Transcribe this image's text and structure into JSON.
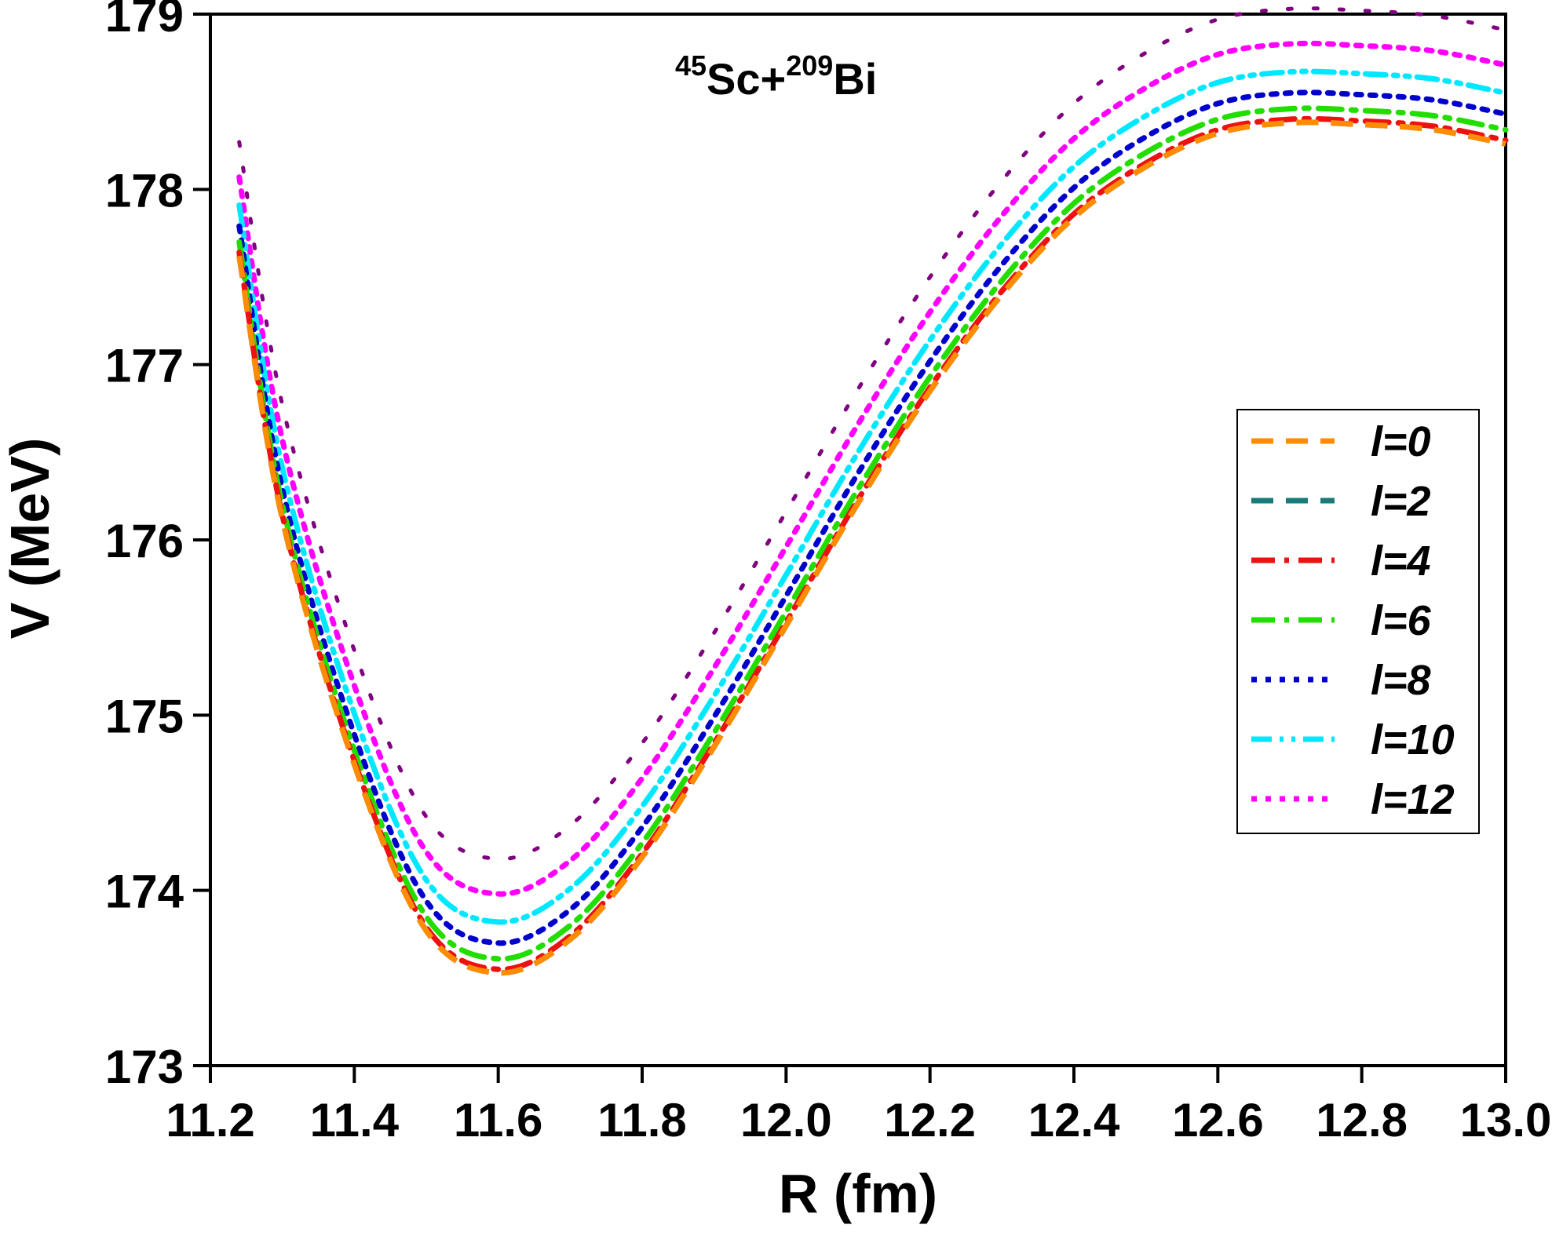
{
  "chart_data": {
    "type": "line",
    "title": "",
    "annotation": {
      "parts": [
        {
          "text": "45",
          "sup": true
        },
        {
          "text": "Sc+",
          "sup": false
        },
        {
          "text": "209",
          "sup": true
        },
        {
          "text": "Bi",
          "sup": false
        }
      ]
    },
    "xlabel": "R (fm)",
    "ylabel": "V (MeV)",
    "xlim": [
      11.2,
      13.0
    ],
    "ylim": [
      173,
      179
    ],
    "xticks": [
      "11.2",
      "11.4",
      "11.6",
      "11.8",
      "12.0",
      "12.2",
      "12.4",
      "12.6",
      "12.8",
      "13.0"
    ],
    "yticks": [
      "173",
      "174",
      "175",
      "176",
      "177",
      "178",
      "179"
    ],
    "grid": false,
    "legend_position": "right-center",
    "x": [
      11.24,
      11.3,
      11.4,
      11.5,
      11.6,
      11.7,
      11.8,
      11.9,
      12.0,
      12.1,
      12.2,
      12.3,
      12.4,
      12.5,
      12.6,
      12.7,
      12.8,
      12.9,
      13.0
    ],
    "series": [
      {
        "name": "l=0",
        "color": "#ff8c00",
        "style": "dash",
        "values": [
          177.62,
          176.12,
          174.72,
          173.77,
          173.53,
          173.72,
          174.19,
          174.82,
          175.51,
          176.21,
          176.85,
          177.4,
          177.84,
          178.13,
          178.32,
          178.38,
          178.37,
          178.34,
          178.26
        ]
      },
      {
        "name": "l=2",
        "color": "#1a7a7a",
        "style": "dash",
        "values": [
          177.62,
          176.12,
          174.72,
          173.77,
          173.53,
          173.72,
          174.19,
          174.82,
          175.51,
          176.21,
          176.85,
          177.4,
          177.84,
          178.13,
          178.32,
          178.38,
          178.37,
          178.34,
          178.26
        ]
      },
      {
        "name": "l=4",
        "color": "#ee1111",
        "style": "dashdot",
        "values": [
          177.64,
          176.14,
          174.74,
          173.79,
          173.55,
          173.74,
          174.21,
          174.84,
          175.53,
          176.23,
          176.87,
          177.42,
          177.86,
          178.15,
          178.34,
          178.4,
          178.39,
          178.36,
          178.28
        ]
      },
      {
        "name": "l=6",
        "color": "#22dd00",
        "style": "dashdot",
        "values": [
          177.7,
          176.2,
          174.8,
          173.85,
          173.61,
          173.8,
          174.27,
          174.9,
          175.59,
          176.29,
          176.93,
          177.48,
          177.92,
          178.21,
          178.4,
          178.46,
          178.45,
          178.42,
          178.34
        ]
      },
      {
        "name": "l=8",
        "color": "#0000cc",
        "style": "dot",
        "values": [
          177.79,
          176.29,
          174.89,
          173.94,
          173.7,
          173.89,
          174.36,
          174.99,
          175.68,
          176.38,
          177.02,
          177.57,
          178.01,
          178.3,
          178.49,
          178.55,
          178.54,
          178.51,
          178.43
        ]
      },
      {
        "name": "l=10",
        "color": "#00e8ff",
        "style": "dashdotdot",
        "values": [
          177.91,
          176.41,
          175.01,
          174.06,
          173.82,
          174.01,
          174.48,
          175.11,
          175.8,
          176.5,
          177.14,
          177.69,
          178.13,
          178.42,
          178.61,
          178.67,
          178.66,
          178.63,
          178.55
        ]
      },
      {
        "name": "l=12",
        "color": "#ff00ff",
        "style": "dot",
        "values": [
          178.07,
          176.57,
          175.17,
          174.22,
          173.98,
          174.17,
          174.64,
          175.27,
          175.96,
          176.66,
          177.3,
          177.85,
          178.29,
          178.58,
          178.77,
          178.83,
          178.82,
          178.79,
          178.71
        ]
      },
      {
        "name": "",
        "color": "#800080",
        "style": "sparse-dot",
        "values": [
          178.27,
          176.77,
          175.37,
          174.42,
          174.18,
          174.37,
          174.84,
          175.47,
          176.16,
          176.86,
          177.5,
          178.05,
          178.49,
          178.78,
          178.97,
          179.03,
          179.02,
          178.99,
          178.91
        ]
      }
    ]
  }
}
